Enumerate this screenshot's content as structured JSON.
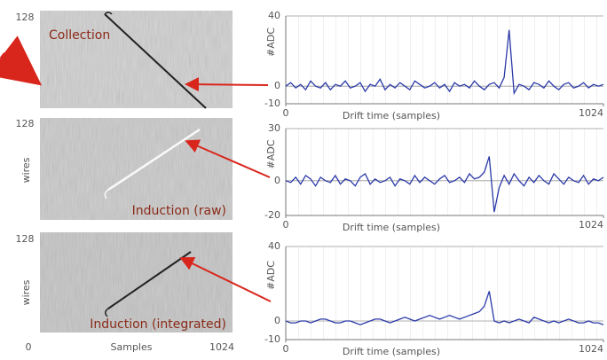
{
  "images": {
    "panels": [
      {
        "label": "Collection",
        "top_label": "128"
      },
      {
        "label": "Induction (raw)",
        "top_label": "128",
        "axis_label": "wires"
      },
      {
        "label": "Induction (integrated)",
        "top_label": "128",
        "axis_label": "wires"
      }
    ],
    "x_axis": {
      "min": "0",
      "label": "Samples",
      "max": "1024"
    }
  },
  "chart_data": [
    {
      "type": "line",
      "xlabel": "Drift time (samples)",
      "ylabel": "#ADC",
      "x": [
        0,
        16,
        32,
        48,
        64,
        80,
        96,
        112,
        128,
        144,
        160,
        176,
        192,
        208,
        224,
        240,
        256,
        272,
        288,
        304,
        320,
        336,
        352,
        368,
        384,
        400,
        416,
        432,
        448,
        464,
        480,
        496,
        512,
        528,
        544,
        560,
        576,
        592,
        608,
        624,
        640,
        656,
        672,
        688,
        704,
        720,
        736,
        752,
        768,
        784,
        800,
        816,
        832,
        848,
        864,
        880,
        896,
        912,
        928,
        944,
        960,
        976,
        992,
        1008,
        1024
      ],
      "series": [
        {
          "color": "#2b3aa8",
          "values": [
            0,
            2,
            -1,
            1,
            -2,
            3,
            0,
            -1,
            2,
            -2,
            1,
            0,
            3,
            -1,
            0,
            2,
            -3,
            1,
            0,
            4,
            -2,
            1,
            -1,
            2,
            0,
            -2,
            3,
            1,
            -1,
            0,
            2,
            -1,
            1,
            -3,
            2,
            0,
            1,
            -1,
            3,
            0,
            -2,
            1,
            2,
            -1,
            5,
            32,
            -4,
            1,
            0,
            -2,
            2,
            1,
            -1,
            3,
            0,
            -2,
            1,
            2,
            -1,
            0,
            2,
            -1,
            1,
            0,
            1
          ]
        }
      ],
      "xlim": [
        0,
        1024
      ],
      "xticks": [
        0,
        1024
      ],
      "ylim": [
        -10,
        40
      ],
      "yticks": [
        -10,
        0,
        40
      ],
      "grid": true
    },
    {
      "type": "line",
      "xlabel": "Drift time (samples)",
      "ylabel": "#ADC",
      "x": [
        0,
        16,
        32,
        48,
        64,
        80,
        96,
        112,
        128,
        144,
        160,
        176,
        192,
        208,
        224,
        240,
        256,
        272,
        288,
        304,
        320,
        336,
        352,
        368,
        384,
        400,
        416,
        432,
        448,
        464,
        480,
        496,
        512,
        528,
        544,
        560,
        576,
        592,
        608,
        624,
        640,
        656,
        672,
        688,
        704,
        720,
        736,
        752,
        768,
        784,
        800,
        816,
        832,
        848,
        864,
        880,
        896,
        912,
        928,
        944,
        960,
        976,
        992,
        1008,
        1024
      ],
      "series": [
        {
          "color": "#2b3aa8",
          "values": [
            0,
            -1,
            2,
            -2,
            3,
            1,
            -3,
            2,
            0,
            -1,
            3,
            -2,
            1,
            0,
            -3,
            2,
            4,
            -2,
            1,
            -1,
            0,
            2,
            -3,
            1,
            0,
            -2,
            3,
            -1,
            2,
            0,
            -2,
            1,
            3,
            -1,
            0,
            2,
            -1,
            4,
            1,
            2,
            5,
            14,
            -18,
            -4,
            3,
            -2,
            4,
            0,
            -3,
            2,
            -1,
            3,
            0,
            -2,
            4,
            1,
            -2,
            2,
            0,
            -1,
            3,
            -2,
            1,
            0,
            2
          ]
        }
      ],
      "xlim": [
        0,
        1024
      ],
      "xticks": [
        0,
        1024
      ],
      "ylim": [
        -20,
        30
      ],
      "yticks": [
        -20,
        0,
        30
      ],
      "grid": true
    },
    {
      "type": "line",
      "xlabel": "Drift time (samples)",
      "ylabel": "#ADC",
      "x": [
        0,
        16,
        32,
        48,
        64,
        80,
        96,
        112,
        128,
        144,
        160,
        176,
        192,
        208,
        224,
        240,
        256,
        272,
        288,
        304,
        320,
        336,
        352,
        368,
        384,
        400,
        416,
        432,
        448,
        464,
        480,
        496,
        512,
        528,
        544,
        560,
        576,
        592,
        608,
        624,
        640,
        656,
        672,
        688,
        704,
        720,
        736,
        752,
        768,
        784,
        800,
        816,
        832,
        848,
        864,
        880,
        896,
        912,
        928,
        944,
        960,
        976,
        992,
        1008,
        1024
      ],
      "series": [
        {
          "color": "#2b3aa8",
          "values": [
            0,
            -1,
            -1,
            0,
            0,
            -1,
            0,
            1,
            1,
            0,
            -1,
            -1,
            0,
            0,
            -1,
            -2,
            -1,
            0,
            1,
            1,
            0,
            -1,
            0,
            1,
            2,
            1,
            0,
            1,
            2,
            3,
            2,
            1,
            2,
            3,
            2,
            1,
            2,
            3,
            4,
            5,
            8,
            16,
            0,
            -1,
            0,
            -1,
            0,
            1,
            0,
            -1,
            2,
            1,
            0,
            -1,
            0,
            -1,
            0,
            1,
            0,
            -1,
            -1,
            0,
            -1,
            -1,
            -2
          ]
        }
      ],
      "xlim": [
        0,
        1024
      ],
      "xticks": [
        0,
        1024
      ],
      "ylim": [
        -10,
        40
      ],
      "yticks": [
        -10,
        0,
        40
      ],
      "grid": true
    }
  ]
}
